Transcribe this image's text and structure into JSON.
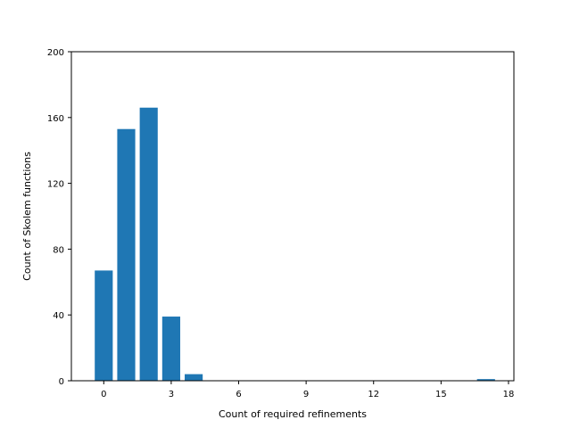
{
  "chart_data": {
    "type": "bar",
    "title": "",
    "xlabel": "Count of required refinements",
    "ylabel": "Count of Skolem functions",
    "xlim": [
      -1.44,
      18.24
    ],
    "ylim": [
      0,
      200
    ],
    "x_ticks": [
      0,
      3,
      6,
      9,
      12,
      15,
      18
    ],
    "y_ticks": [
      0,
      40,
      80,
      120,
      160,
      200
    ],
    "bar_color": "#1f77b4",
    "grid": false,
    "legend": "none",
    "x": [
      0,
      1,
      2,
      3,
      4,
      17
    ],
    "values": [
      67,
      153,
      166,
      39,
      4,
      1
    ]
  }
}
